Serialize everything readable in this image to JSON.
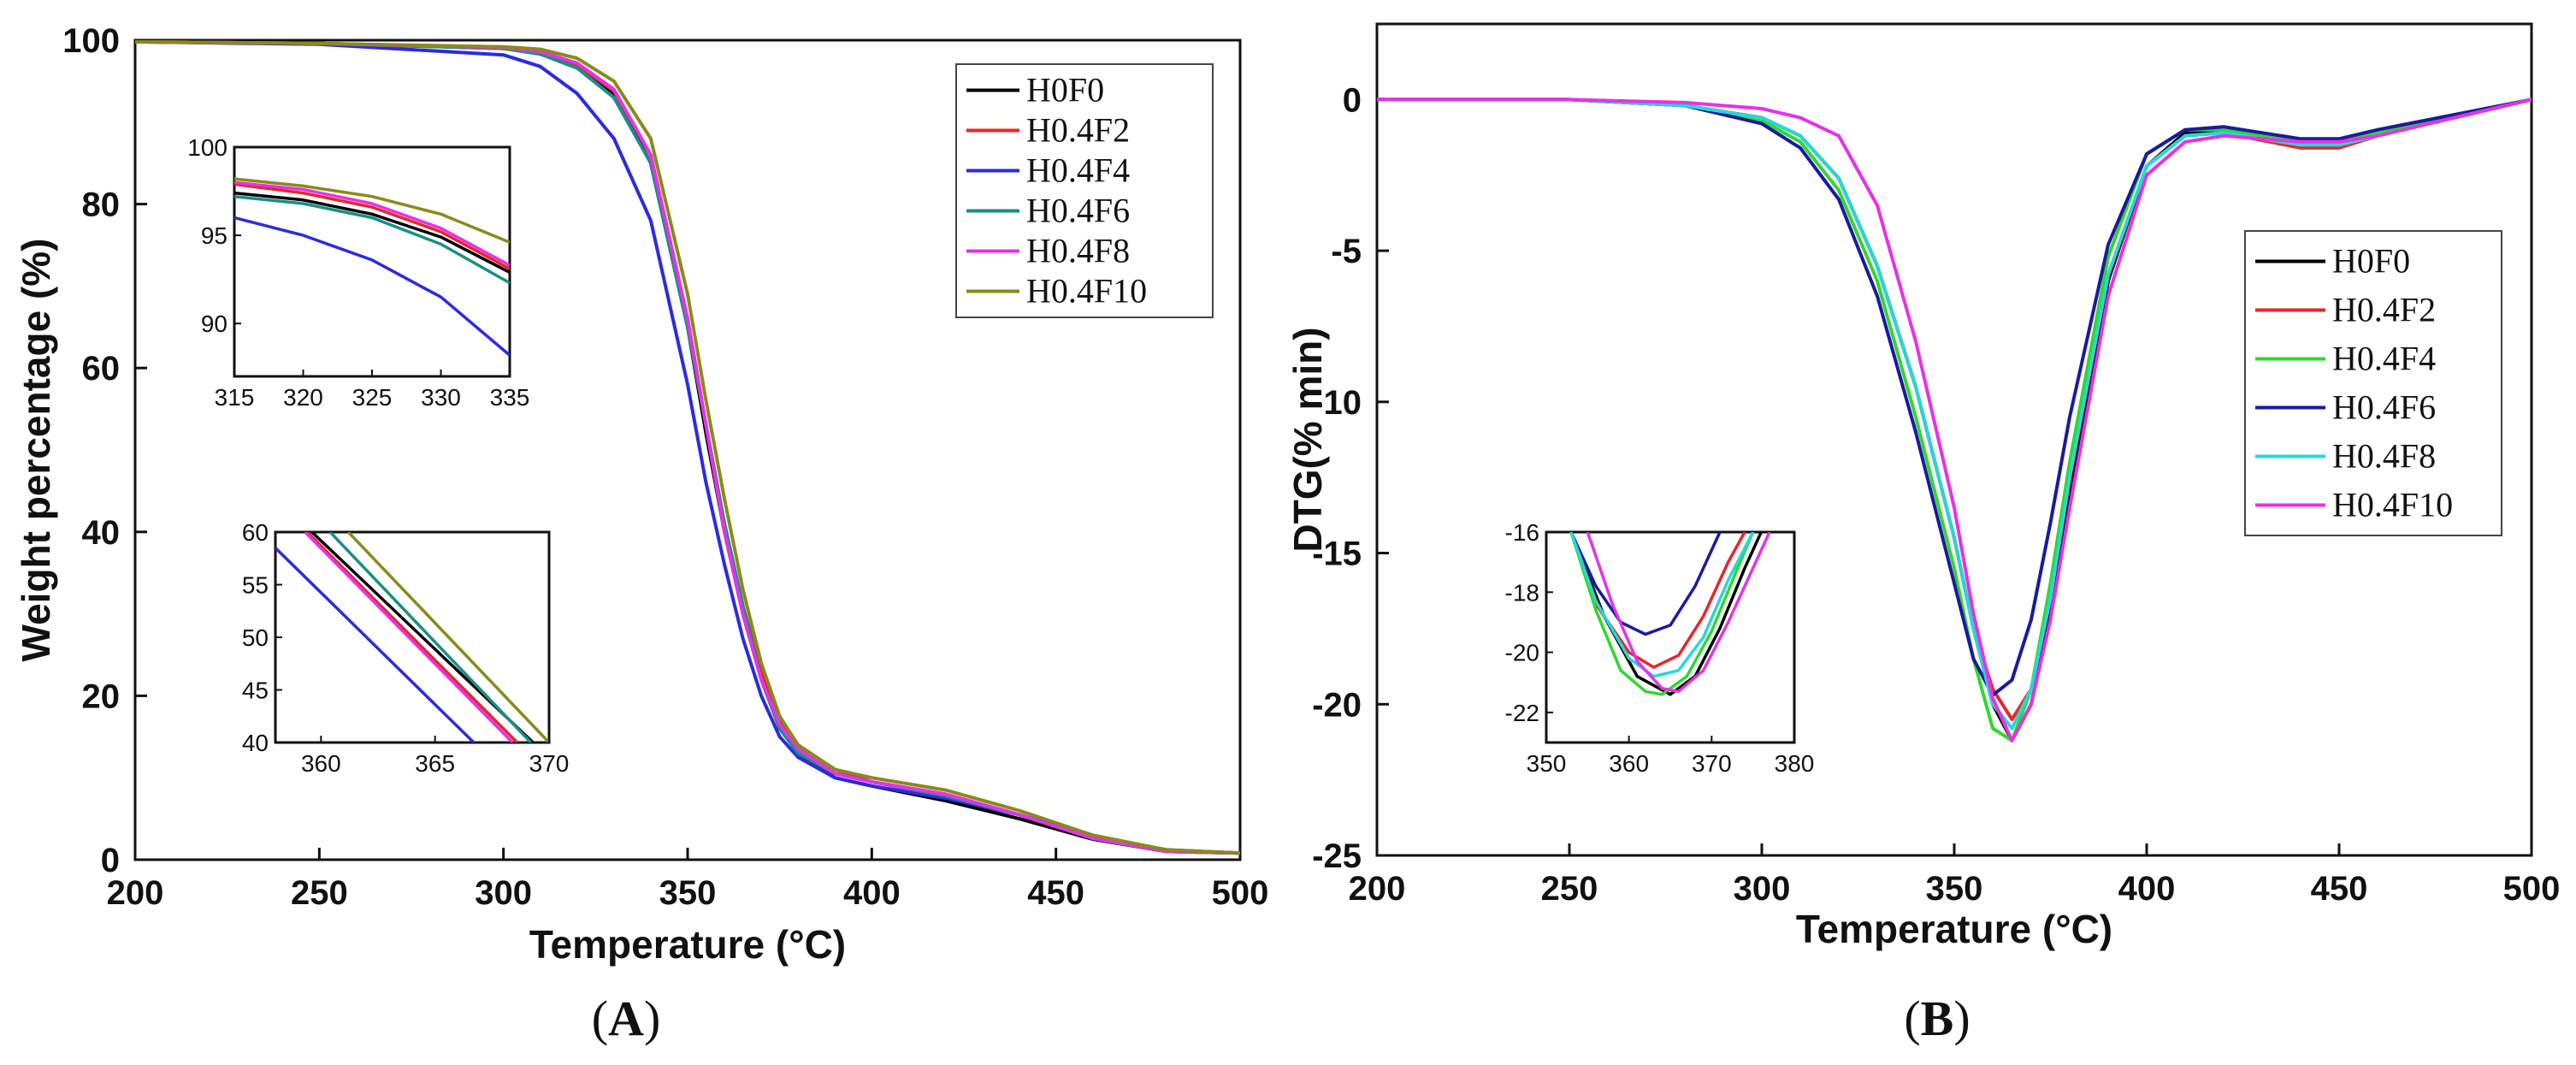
{
  "chart_data": [
    {
      "type": "line",
      "panel_label": "A",
      "xlabel": "Temperature (°C)",
      "ylabel": "Weight percentage (%)",
      "xlim": [
        200,
        500
      ],
      "ylim": [
        0,
        100
      ],
      "xticks": [
        200,
        250,
        300,
        350,
        400,
        450,
        500
      ],
      "yticks": [
        0,
        20,
        40,
        60,
        80,
        100
      ],
      "legend_position": "top-right",
      "series": [
        {
          "name": "H0F0",
          "color": "#000000",
          "x": [
            200,
            250,
            300,
            310,
            320,
            330,
            340,
            350,
            355,
            360,
            365,
            370,
            375,
            380,
            390,
            400,
            420,
            440,
            460,
            480,
            500
          ],
          "y": [
            99.8,
            99.6,
            99.0,
            98.4,
            96.8,
            93.5,
            85,
            65,
            52,
            40,
            30,
            22,
            16,
            13,
            10,
            9,
            7.2,
            5,
            2.5,
            1,
            0.8
          ]
        },
        {
          "name": "H0.4F2",
          "color": "#e8262a",
          "x": [
            200,
            250,
            300,
            310,
            320,
            330,
            340,
            350,
            355,
            360,
            365,
            370,
            375,
            380,
            390,
            400,
            420,
            440,
            460,
            480,
            500
          ],
          "y": [
            99.8,
            99.6,
            99.1,
            98.5,
            97.0,
            93.8,
            86,
            66,
            53,
            41,
            31,
            23,
            17,
            14,
            11,
            9.5,
            8,
            5.5,
            2.8,
            1.2,
            0.8
          ]
        },
        {
          "name": "H0.4F4",
          "color": "#2b2be0",
          "x": [
            200,
            250,
            300,
            310,
            320,
            330,
            340,
            350,
            355,
            360,
            365,
            370,
            375,
            380,
            390,
            400,
            420,
            440,
            460,
            480,
            500
          ],
          "y": [
            99.8,
            99.5,
            98.2,
            96.8,
            93.5,
            88,
            78,
            58,
            46,
            36,
            27,
            20,
            15,
            12.5,
            10,
            9,
            7.5,
            5.5,
            2.8,
            1.2,
            0.8
          ]
        },
        {
          "name": "H0.4F6",
          "color": "#1a8f86",
          "x": [
            200,
            250,
            300,
            310,
            320,
            330,
            340,
            350,
            355,
            360,
            365,
            370,
            375,
            380,
            390,
            400,
            420,
            440,
            460,
            480,
            500
          ],
          "y": [
            99.8,
            99.6,
            99.0,
            98.3,
            96.6,
            93.0,
            85,
            65,
            53,
            41,
            31,
            22,
            16,
            13,
            10.5,
            9.5,
            7.8,
            5.5,
            2.6,
            1,
            0.8
          ]
        },
        {
          "name": "H0.4F8",
          "color": "#e632e6",
          "x": [
            200,
            250,
            300,
            310,
            320,
            330,
            340,
            350,
            355,
            360,
            365,
            370,
            375,
            380,
            390,
            400,
            420,
            440,
            460,
            480,
            500
          ],
          "y": [
            99.8,
            99.6,
            99.1,
            98.6,
            97.2,
            94,
            86,
            66,
            53,
            40,
            30,
            22,
            16.5,
            13.5,
            10.5,
            9.5,
            8,
            5.5,
            2.6,
            1,
            0.8
          ]
        },
        {
          "name": "H0.4F10",
          "color": "#8a8a1a",
          "x": [
            200,
            250,
            300,
            310,
            320,
            330,
            340,
            350,
            355,
            360,
            365,
            370,
            375,
            380,
            390,
            400,
            420,
            440,
            460,
            480,
            500
          ],
          "y": [
            99.8,
            99.6,
            99.2,
            98.9,
            97.8,
            95,
            88,
            69,
            56,
            44,
            33,
            24,
            17.5,
            14,
            11,
            10,
            8.5,
            6,
            3,
            1.2,
            0.8
          ]
        }
      ],
      "insets": [
        {
          "position": "upper-left",
          "xlim": [
            315,
            335
          ],
          "ylim": [
            87,
            100
          ],
          "xticks": [
            315,
            320,
            325,
            330,
            335
          ],
          "yticks": [
            90,
            95,
            100
          ],
          "series": [
            {
              "name": "H0F0",
              "x": [
                315,
                320,
                325,
                330,
                335
              ],
              "y": [
                97.4,
                97.0,
                96.2,
                94.9,
                92.9
              ]
            },
            {
              "name": "H0.4F2",
              "x": [
                315,
                320,
                325,
                330,
                335
              ],
              "y": [
                97.9,
                97.4,
                96.6,
                95.2,
                93.1
              ]
            },
            {
              "name": "H0.4F4",
              "x": [
                315,
                320,
                325,
                330,
                335
              ],
              "y": [
                96.0,
                95.0,
                93.6,
                91.5,
                88.2
              ]
            },
            {
              "name": "H0.4F6",
              "x": [
                315,
                320,
                325,
                330,
                335
              ],
              "y": [
                97.2,
                96.8,
                96.0,
                94.5,
                92.3
              ]
            },
            {
              "name": "H0.4F8",
              "x": [
                315,
                320,
                325,
                330,
                335
              ],
              "y": [
                98.0,
                97.6,
                96.8,
                95.4,
                93.3
              ]
            },
            {
              "name": "H0.4F10",
              "x": [
                315,
                320,
                325,
                330,
                335
              ],
              "y": [
                98.2,
                97.8,
                97.2,
                96.2,
                94.6
              ]
            }
          ]
        },
        {
          "position": "lower-left",
          "xlim": [
            358,
            370
          ],
          "ylim": [
            40,
            60
          ],
          "xticks": [
            360,
            365,
            370
          ],
          "yticks": [
            40,
            45,
            50,
            55,
            60
          ],
          "series": [
            {
              "name": "H0F0",
              "x": [
                359.6,
                369.3
              ],
              "y": [
                60,
                40
              ]
            },
            {
              "name": "H0.4F2",
              "x": [
                359.4,
                368.6
              ],
              "y": [
                60,
                40
              ]
            },
            {
              "name": "H0.4F4",
              "x": [
                358,
                366.7
              ],
              "y": [
                58.5,
                40
              ]
            },
            {
              "name": "H0.4F6",
              "x": [
                360.4,
                369.2
              ],
              "y": [
                60,
                40
              ]
            },
            {
              "name": "H0.4F8",
              "x": [
                359.3,
                368.4
              ],
              "y": [
                60,
                40
              ]
            },
            {
              "name": "H0.4F10",
              "x": [
                361.2,
                370
              ],
              "y": [
                60,
                40
              ]
            }
          ]
        }
      ]
    },
    {
      "type": "line",
      "panel_label": "B",
      "xlabel": "Temperature (°C)",
      "ylabel": "DTG(% min)",
      "xlim": [
        200,
        500
      ],
      "ylim": [
        -25,
        2.5
      ],
      "xticks": [
        200,
        250,
        300,
        350,
        400,
        450,
        500
      ],
      "yticks": [
        0,
        -5,
        -10,
        -15,
        -20,
        -25
      ],
      "legend_position": "right",
      "series": [
        {
          "name": "H0F0",
          "color": "#000000",
          "x": [
            200,
            250,
            280,
            300,
            310,
            320,
            330,
            340,
            350,
            355,
            360,
            365,
            370,
            375,
            380,
            390,
            400,
            410,
            420,
            440,
            450,
            460,
            480,
            500
          ],
          "y": [
            0,
            0,
            -0.2,
            -0.6,
            -1.2,
            -2.6,
            -5.5,
            -9.5,
            -14.5,
            -17.5,
            -20,
            -21.2,
            -20,
            -17,
            -13,
            -6,
            -2.2,
            -1.1,
            -1.0,
            -1.4,
            -1.4,
            -1.1,
            -0.6,
            0
          ]
        },
        {
          "name": "H0.4F2",
          "color": "#e8262a",
          "x": [
            200,
            250,
            280,
            300,
            310,
            320,
            330,
            340,
            350,
            355,
            360,
            365,
            370,
            375,
            380,
            390,
            400,
            410,
            420,
            440,
            450,
            460,
            480,
            500
          ],
          "y": [
            0,
            0,
            -0.2,
            -0.6,
            -1.2,
            -2.6,
            -5.5,
            -9.5,
            -14.5,
            -17.5,
            -19.5,
            -20.5,
            -19.5,
            -16.5,
            -12.5,
            -5.8,
            -2.2,
            -1.2,
            -1.1,
            -1.6,
            -1.6,
            -1.2,
            -0.6,
            0
          ]
        },
        {
          "name": "H0.4F4",
          "color": "#2fd82f",
          "x": [
            200,
            250,
            280,
            300,
            310,
            320,
            330,
            340,
            350,
            355,
            360,
            365,
            370,
            375,
            380,
            390,
            400,
            410,
            420,
            440,
            450,
            460,
            480,
            500
          ],
          "y": [
            0,
            0,
            -0.2,
            -0.7,
            -1.4,
            -3.0,
            -6,
            -10.5,
            -15.5,
            -18.5,
            -20.8,
            -21.2,
            -19.5,
            -16,
            -12,
            -5.2,
            -1.8,
            -1.0,
            -1.0,
            -1.4,
            -1.4,
            -1.1,
            -0.6,
            0
          ]
        },
        {
          "name": "H0.4F6",
          "color": "#1a1aa0",
          "x": [
            200,
            250,
            280,
            300,
            310,
            320,
            330,
            340,
            350,
            355,
            360,
            365,
            370,
            375,
            380,
            390,
            400,
            410,
            420,
            440,
            450,
            460,
            480,
            500
          ],
          "y": [
            0,
            0,
            -0.2,
            -0.8,
            -1.6,
            -3.3,
            -6.5,
            -11,
            -16,
            -18.5,
            -19.7,
            -19.2,
            -17.2,
            -14,
            -10.5,
            -4.8,
            -1.8,
            -1.0,
            -0.9,
            -1.3,
            -1.3,
            -1.0,
            -0.5,
            0
          ]
        },
        {
          "name": "H0.4F8",
          "color": "#26d8d8",
          "x": [
            200,
            250,
            280,
            300,
            310,
            320,
            330,
            340,
            350,
            355,
            360,
            365,
            370,
            375,
            380,
            390,
            400,
            410,
            420,
            440,
            450,
            460,
            480,
            500
          ],
          "y": [
            0,
            0,
            -0.2,
            -0.6,
            -1.2,
            -2.6,
            -5.5,
            -9.5,
            -14.5,
            -17.5,
            -20,
            -20.8,
            -19.5,
            -16.5,
            -12.5,
            -5.8,
            -2.2,
            -1.2,
            -1.1,
            -1.5,
            -1.5,
            -1.2,
            -0.6,
            0
          ]
        },
        {
          "name": "H0.4F10",
          "color": "#e632e6",
          "x": [
            200,
            250,
            280,
            300,
            310,
            320,
            330,
            340,
            350,
            355,
            360,
            365,
            370,
            375,
            380,
            390,
            400,
            410,
            420,
            440,
            450,
            460,
            480,
            500
          ],
          "y": [
            0,
            0,
            -0.1,
            -0.3,
            -0.6,
            -1.2,
            -3.5,
            -8,
            -13.5,
            -17,
            -19.8,
            -21.2,
            -20,
            -17.2,
            -13.5,
            -6.5,
            -2.5,
            -1.4,
            -1.2,
            -1.4,
            -1.4,
            -1.2,
            -0.6,
            0
          ]
        }
      ],
      "insets": [
        {
          "position": "lower-left",
          "xlim": [
            350,
            380
          ],
          "ylim": [
            -23,
            -16
          ],
          "xticks": [
            350,
            360,
            370,
            380
          ],
          "yticks": [
            -16,
            -18,
            -20,
            -22
          ],
          "series": [
            {
              "name": "H0F0",
              "x": [
                353,
                357,
                361,
                365,
                368,
                371,
                374,
                376
              ],
              "y": [
                -16,
                -18.8,
                -20.8,
                -21.4,
                -20.8,
                -19.2,
                -17.2,
                -16
              ]
            },
            {
              "name": "H0.4F2",
              "x": [
                353,
                356,
                360,
                363,
                366,
                369,
                372,
                374
              ],
              "y": [
                -16,
                -18.4,
                -20.0,
                -20.5,
                -20.1,
                -18.8,
                -17.0,
                -16
              ]
            },
            {
              "name": "H0.4F4",
              "x": [
                353,
                356,
                359,
                362,
                364,
                367,
                370,
                373,
                375
              ],
              "y": [
                -16,
                -18.6,
                -20.6,
                -21.3,
                -21.4,
                -20.8,
                -19.3,
                -17.3,
                -16
              ]
            },
            {
              "name": "H0.4F6",
              "x": [
                353,
                356,
                359,
                362,
                365,
                368,
                370,
                371
              ],
              "y": [
                -16,
                -17.8,
                -19.0,
                -19.4,
                -19.1,
                -17.8,
                -16.6,
                -16
              ]
            },
            {
              "name": "H0.4F8",
              "x": [
                353,
                356,
                360,
                363,
                366,
                369,
                372,
                375
              ],
              "y": [
                -16,
                -18.3,
                -20.2,
                -20.8,
                -20.6,
                -19.5,
                -17.6,
                -16
              ]
            },
            {
              "name": "H0.4F10",
              "x": [
                355,
                358,
                361,
                364,
                366,
                369,
                372,
                375,
                377
              ],
              "y": [
                -16,
                -18.4,
                -20.3,
                -21.2,
                -21.3,
                -20.6,
                -19,
                -17.2,
                -16
              ]
            }
          ]
        }
      ]
    }
  ]
}
